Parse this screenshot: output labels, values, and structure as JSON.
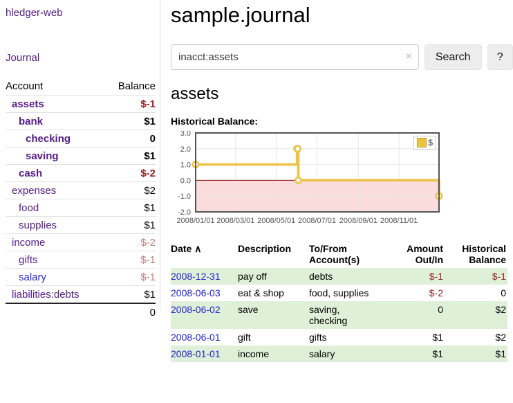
{
  "app": {
    "brand": "hledger-web",
    "nav_journal": "Journal"
  },
  "colors": {
    "link_purple": "#551a8b",
    "link_blue": "#2222cc",
    "negative_strong": "#941f1f",
    "negative_soft": "#c08080",
    "row_green": "#dff0d8",
    "series_gold": "#edc240"
  },
  "sidebar": {
    "header": {
      "account": "Account",
      "balance": "Balance"
    },
    "accounts": [
      {
        "name": "assets",
        "balance": "$-1",
        "depth": 1,
        "bold": true,
        "negative": "strong"
      },
      {
        "name": "bank",
        "balance": "$1",
        "depth": 2,
        "bold": true
      },
      {
        "name": "checking",
        "balance": "0",
        "depth": 3,
        "bold": true
      },
      {
        "name": "saving",
        "balance": "$1",
        "depth": 3,
        "bold": true
      },
      {
        "name": "cash",
        "balance": "$-2",
        "depth": 2,
        "bold": true,
        "negative": "strong"
      },
      {
        "name": "expenses",
        "balance": "$2",
        "depth": 1
      },
      {
        "name": "food",
        "balance": "$1",
        "depth": 2
      },
      {
        "name": "supplies",
        "balance": "$1",
        "depth": 2
      },
      {
        "name": "income",
        "balance": "$-2",
        "depth": 1,
        "negative": "soft"
      },
      {
        "name": "gifts",
        "balance": "$-1",
        "depth": 2,
        "negative": "soft"
      },
      {
        "name": "salary",
        "balance": "$-1",
        "depth": 2,
        "negative": "soft"
      },
      {
        "name": "liabilities:debts",
        "balance": "$1",
        "depth": 1
      }
    ],
    "total": "0"
  },
  "main": {
    "title": "sample.journal",
    "search": {
      "value": "inacct:assets",
      "clear_icon": "×",
      "button": "Search",
      "help": "?"
    },
    "account_heading": "assets",
    "chart_label": "Historical Balance:"
  },
  "chart_data": {
    "type": "line",
    "style": "step",
    "title": "Historical Balance",
    "xlim": [
      "2008-01-01",
      "2008-12-31"
    ],
    "ylim": [
      -2,
      3
    ],
    "xticks": [
      "2008/01/01",
      "2008/03/01",
      "2008/05/01",
      "2008/07/01",
      "2008/09/01",
      "2008/11/01"
    ],
    "yticks": [
      "3.0",
      "2.0",
      "1.0",
      "0.0",
      "-1.0",
      "-2.0"
    ],
    "grid": true,
    "legend": {
      "label": "$",
      "position": "top-right"
    },
    "zero_line_color": "#8b0000",
    "negative_region_color": "#fbdcdc",
    "series": [
      {
        "name": "$",
        "color": "#edc240",
        "points": [
          [
            "2008-01-01",
            1
          ],
          [
            "2008-06-01",
            2
          ],
          [
            "2008-06-02",
            2
          ],
          [
            "2008-06-03",
            0
          ],
          [
            "2008-12-31",
            -1
          ]
        ]
      }
    ]
  },
  "register": {
    "headers": {
      "date": "Date",
      "description": "Description",
      "accounts": "To/From Account(s)",
      "amount": "Amount Out/In",
      "balance": "Historical Balance"
    },
    "sort_asc_icon": "∧",
    "rows": [
      {
        "date": "2008-12-31",
        "description": "pay off",
        "accounts": "debts",
        "amount": "$-1",
        "balance": "$-1"
      },
      {
        "date": "2008-06-03",
        "description": "eat & shop",
        "accounts": "food, supplies",
        "amount": "$-2",
        "balance": "0"
      },
      {
        "date": "2008-06-02",
        "description": "save",
        "accounts": "saving, checking",
        "amount": "0",
        "balance": "$2"
      },
      {
        "date": "2008-06-01",
        "description": "gift",
        "accounts": "gifts",
        "amount": "$1",
        "balance": "$2"
      },
      {
        "date": "2008-01-01",
        "description": "income",
        "accounts": "salary",
        "amount": "$1",
        "balance": "$1"
      }
    ]
  }
}
